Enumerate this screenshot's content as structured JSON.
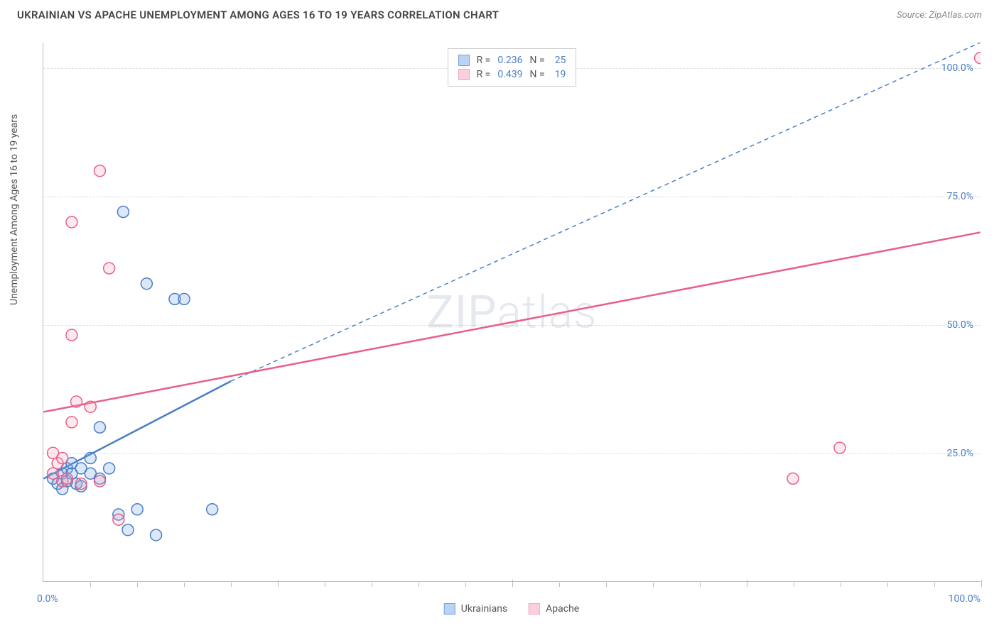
{
  "header": {
    "title": "UKRAINIAN VS APACHE UNEMPLOYMENT AMONG AGES 16 TO 19 YEARS CORRELATION CHART",
    "source": "Source: ZipAtlas.com"
  },
  "chart": {
    "type": "scatter",
    "ylabel": "Unemployment Among Ages 16 to 19 years",
    "watermark": "ZIPatlas",
    "xlim": [
      0,
      100
    ],
    "ylim": [
      0,
      105
    ],
    "background_color": "#ffffff",
    "grid_color": "#dddddd",
    "axis_color": "#bbbbbb",
    "tick_label_color": "#4a7ec8",
    "label_color": "#555555",
    "label_fontsize": 14,
    "tick_fontsize": 14,
    "yticks": [
      {
        "v": 25,
        "label": "25.0%"
      },
      {
        "v": 50,
        "label": "50.0%"
      },
      {
        "v": 75,
        "label": "75.0%"
      },
      {
        "v": 100,
        "label": "100.0%"
      }
    ],
    "xticks_minor": [
      5,
      10,
      15,
      20,
      25,
      30,
      35,
      40,
      45,
      50,
      55,
      60,
      65,
      70,
      75,
      80,
      85,
      90,
      95,
      100
    ],
    "xticks_major": [
      25,
      50,
      75,
      100
    ],
    "xtick_labels": {
      "left": "0.0%",
      "right": "100.0%"
    },
    "marker_radius": 8,
    "marker_stroke_width": 1.5,
    "marker_fill_opacity": 0.25,
    "series": [
      {
        "name": "Ukrainians",
        "color": "#6fa3e0",
        "stroke": "#4a7ec8",
        "R": "0.236",
        "N": "25",
        "points": [
          [
            1,
            20
          ],
          [
            1.5,
            19
          ],
          [
            2,
            21
          ],
          [
            2,
            18
          ],
          [
            2.5,
            22
          ],
          [
            2.5,
            19.5
          ],
          [
            3,
            21
          ],
          [
            3,
            23
          ],
          [
            3.5,
            19
          ],
          [
            4,
            18.5
          ],
          [
            4,
            22
          ],
          [
            5,
            21
          ],
          [
            5,
            24
          ],
          [
            6,
            20
          ],
          [
            6,
            30
          ],
          [
            7,
            22
          ],
          [
            8,
            13
          ],
          [
            8.5,
            72
          ],
          [
            9,
            10
          ],
          [
            10,
            14
          ],
          [
            11,
            58
          ],
          [
            12,
            9
          ],
          [
            14,
            55
          ],
          [
            15,
            55
          ],
          [
            18,
            14
          ]
        ],
        "trend_solid": {
          "x1": 0,
          "y1": 20,
          "x2": 20,
          "y2": 39
        },
        "trend_dashed": {
          "x1": 20,
          "y1": 39,
          "x2": 100,
          "y2": 105
        }
      },
      {
        "name": "Apache",
        "color": "#f5a6bc",
        "stroke": "#e85f8a",
        "R": "0.439",
        "N": "19",
        "points": [
          [
            1,
            21
          ],
          [
            1,
            25
          ],
          [
            1.5,
            23
          ],
          [
            2,
            19.5
          ],
          [
            2,
            24
          ],
          [
            2.5,
            20
          ],
          [
            3,
            31
          ],
          [
            3,
            48
          ],
          [
            3,
            70
          ],
          [
            3.5,
            35
          ],
          [
            4,
            19
          ],
          [
            5,
            34
          ],
          [
            6,
            19.5
          ],
          [
            6,
            80
          ],
          [
            7,
            61
          ],
          [
            8,
            12
          ],
          [
            80,
            20
          ],
          [
            85,
            26
          ],
          [
            100,
            102
          ]
        ],
        "trend_solid": {
          "x1": 0,
          "y1": 33,
          "x2": 100,
          "y2": 68
        }
      }
    ],
    "legend_top": {
      "r_label": "R =",
      "n_label": "N ="
    },
    "legend_bottom": [
      {
        "label": "Ukrainians",
        "fill": "#b9d3f0",
        "stroke": "#6fa3e0"
      },
      {
        "label": "Apache",
        "fill": "#f9d0dc",
        "stroke": "#f5a6bc"
      }
    ]
  }
}
